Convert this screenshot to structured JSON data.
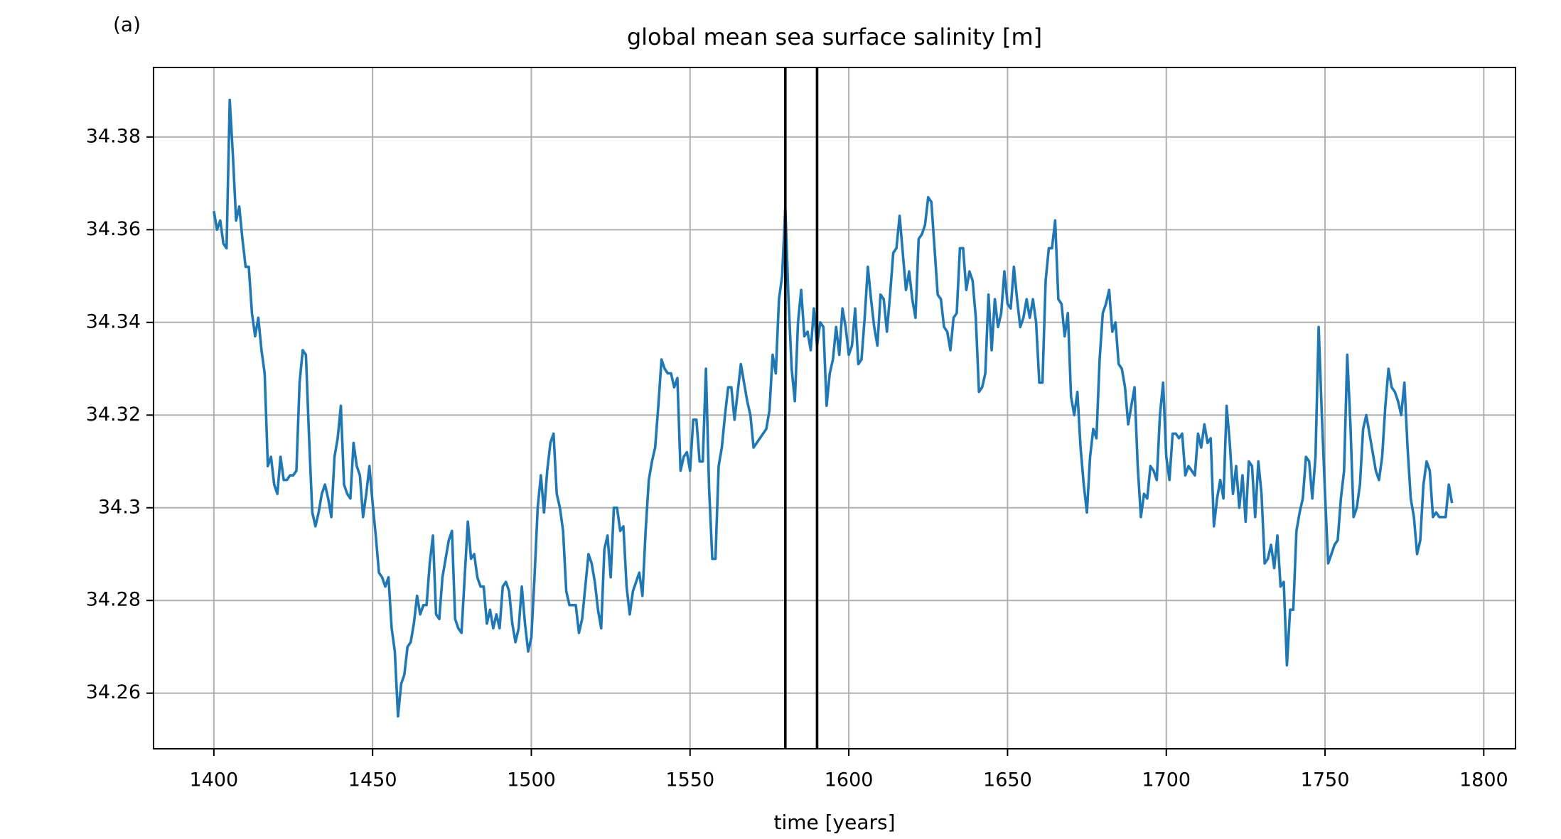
{
  "chart_data": {
    "type": "line",
    "title": "global mean sea surface salinity [m]",
    "panel_label": "(a)",
    "xlabel": "time [years]",
    "xlim": [
      1381,
      1810
    ],
    "ylim": [
      34.248,
      34.395
    ],
    "xticks": [
      1400,
      1450,
      1500,
      1550,
      1600,
      1650,
      1700,
      1750,
      1800
    ],
    "yticks": [
      34.26,
      34.28,
      34.3,
      34.32,
      34.34,
      34.36,
      34.38
    ],
    "grid": true,
    "vlines": [
      1580,
      1590
    ],
    "vline_color": "#000000",
    "x": [
      1400,
      1401,
      1402,
      1403,
      1404,
      1405,
      1406,
      1407,
      1408,
      1409,
      1410,
      1411,
      1412,
      1413,
      1414,
      1415,
      1416,
      1417,
      1418,
      1419,
      1420,
      1421,
      1422,
      1423,
      1424,
      1425,
      1426,
      1427,
      1428,
      1429,
      1430,
      1431,
      1432,
      1433,
      1434,
      1435,
      1436,
      1437,
      1438,
      1439,
      1440,
      1441,
      1442,
      1443,
      1444,
      1445,
      1446,
      1447,
      1448,
      1449,
      1450,
      1451,
      1452,
      1453,
      1454,
      1455,
      1456,
      1457,
      1458,
      1459,
      1460,
      1461,
      1462,
      1463,
      1464,
      1465,
      1466,
      1467,
      1468,
      1469,
      1470,
      1471,
      1472,
      1473,
      1474,
      1475,
      1476,
      1477,
      1478,
      1479,
      1480,
      1481,
      1482,
      1483,
      1484,
      1485,
      1486,
      1487,
      1488,
      1489,
      1490,
      1491,
      1492,
      1493,
      1494,
      1495,
      1496,
      1497,
      1498,
      1499,
      1500,
      1501,
      1502,
      1503,
      1504,
      1505,
      1506,
      1507,
      1508,
      1509,
      1510,
      1511,
      1512,
      1513,
      1514,
      1515,
      1516,
      1517,
      1518,
      1519,
      1520,
      1521,
      1522,
      1523,
      1524,
      1525,
      1526,
      1527,
      1528,
      1529,
      1530,
      1531,
      1532,
      1533,
      1534,
      1535,
      1536,
      1537,
      1538,
      1539,
      1540,
      1541,
      1542,
      1543,
      1544,
      1545,
      1546,
      1547,
      1548,
      1549,
      1550,
      1551,
      1552,
      1553,
      1554,
      1555,
      1556,
      1557,
      1558,
      1559,
      1560,
      1561,
      1562,
      1563,
      1564,
      1565,
      1566,
      1567,
      1568,
      1569,
      1570,
      1571,
      1572,
      1573,
      1574,
      1575,
      1576,
      1577,
      1578,
      1579,
      1580,
      1581,
      1582,
      1583,
      1584,
      1585,
      1586,
      1587,
      1588,
      1589,
      1590,
      1591,
      1592,
      1593,
      1594,
      1595,
      1596,
      1597,
      1598,
      1599,
      1600,
      1601,
      1602,
      1603,
      1604,
      1605,
      1606,
      1607,
      1608,
      1609,
      1610,
      1611,
      1612,
      1613,
      1614,
      1615,
      1616,
      1617,
      1618,
      1619,
      1620,
      1621,
      1622,
      1623,
      1624,
      1625,
      1626,
      1627,
      1628,
      1629,
      1630,
      1631,
      1632,
      1633,
      1634,
      1635,
      1636,
      1637,
      1638,
      1639,
      1640,
      1641,
      1642,
      1643,
      1644,
      1645,
      1646,
      1647,
      1648,
      1649,
      1650,
      1651,
      1652,
      1653,
      1654,
      1655,
      1656,
      1657,
      1658,
      1659,
      1660,
      1661,
      1662,
      1663,
      1664,
      1665,
      1666,
      1667,
      1668,
      1669,
      1670,
      1671,
      1672,
      1673,
      1674,
      1675,
      1676,
      1677,
      1678,
      1679,
      1680,
      1681,
      1682,
      1683,
      1684,
      1685,
      1686,
      1687,
      1688,
      1689,
      1690,
      1691,
      1692,
      1693,
      1694,
      1695,
      1696,
      1697,
      1698,
      1699,
      1700,
      1701,
      1702,
      1703,
      1704,
      1705,
      1706,
      1707,
      1708,
      1709,
      1710,
      1711,
      1712,
      1713,
      1714,
      1715,
      1716,
      1717,
      1718,
      1719,
      1720,
      1721,
      1722,
      1723,
      1724,
      1725,
      1726,
      1727,
      1728,
      1729,
      1730,
      1731,
      1732,
      1733,
      1734,
      1735,
      1736,
      1737,
      1738,
      1739,
      1740,
      1741,
      1742,
      1743,
      1744,
      1745,
      1746,
      1747,
      1748,
      1749,
      1750,
      1751,
      1752,
      1753,
      1754,
      1755,
      1756,
      1757,
      1758,
      1759,
      1760,
      1761,
      1762,
      1763,
      1764,
      1765,
      1766,
      1767,
      1768,
      1769,
      1770,
      1771,
      1772,
      1773,
      1774,
      1775,
      1776,
      1777,
      1778,
      1779,
      1780,
      1781,
      1782,
      1783,
      1784,
      1785,
      1786,
      1787,
      1788,
      1789,
      1790
    ],
    "series": [
      {
        "color": "#1f77b4",
        "values": [
          34.364,
          34.36,
          34.362,
          34.357,
          34.356,
          34.388,
          34.376,
          34.362,
          34.365,
          34.358,
          34.352,
          34.352,
          34.342,
          34.337,
          34.341,
          34.334,
          34.329,
          34.309,
          34.311,
          34.305,
          34.303,
          34.311,
          34.306,
          34.306,
          34.307,
          34.307,
          34.308,
          34.327,
          34.334,
          34.333,
          34.315,
          34.299,
          34.296,
          34.299,
          34.303,
          34.305,
          34.302,
          34.298,
          34.311,
          34.315,
          34.322,
          34.305,
          34.303,
          34.302,
          34.314,
          34.309,
          34.307,
          34.298,
          34.303,
          34.309,
          34.301,
          34.294,
          34.286,
          34.285,
          34.283,
          34.285,
          34.274,
          34.269,
          34.255,
          34.262,
          34.264,
          34.27,
          34.271,
          34.275,
          34.281,
          34.277,
          34.279,
          34.279,
          34.288,
          34.294,
          34.277,
          34.276,
          34.285,
          34.289,
          34.293,
          34.295,
          34.276,
          34.274,
          34.273,
          34.285,
          34.297,
          34.289,
          34.29,
          34.285,
          34.283,
          34.283,
          34.275,
          34.278,
          34.274,
          34.277,
          34.274,
          34.283,
          34.284,
          34.282,
          34.275,
          34.271,
          34.274,
          34.283,
          34.275,
          34.269,
          34.272,
          34.285,
          34.3,
          34.307,
          34.299,
          34.308,
          34.314,
          34.316,
          34.303,
          34.3,
          34.295,
          34.282,
          34.279,
          34.279,
          34.279,
          34.273,
          34.276,
          34.283,
          34.29,
          34.288,
          34.284,
          34.278,
          34.274,
          34.291,
          34.294,
          34.285,
          34.3,
          34.3,
          34.295,
          34.296,
          34.283,
          34.277,
          34.282,
          34.284,
          34.286,
          34.281,
          34.295,
          34.306,
          34.31,
          34.313,
          34.322,
          34.332,
          34.33,
          34.329,
          34.329,
          34.326,
          34.328,
          34.308,
          34.311,
          34.312,
          34.308,
          34.319,
          34.319,
          34.31,
          34.31,
          34.33,
          34.304,
          34.289,
          34.289,
          34.309,
          34.313,
          34.32,
          34.326,
          34.326,
          34.319,
          34.325,
          34.331,
          34.327,
          34.323,
          34.32,
          34.313,
          34.314,
          34.315,
          34.316,
          34.317,
          34.321,
          34.333,
          34.329,
          34.345,
          34.35,
          34.365,
          34.345,
          34.33,
          34.323,
          34.34,
          34.347,
          34.337,
          34.338,
          34.334,
          34.343,
          34.335,
          34.34,
          34.339,
          34.322,
          34.329,
          34.332,
          34.339,
          34.333,
          34.343,
          34.339,
          34.333,
          34.335,
          34.343,
          34.331,
          34.332,
          34.341,
          34.352,
          34.345,
          34.339,
          34.335,
          34.346,
          34.345,
          34.338,
          34.346,
          34.355,
          34.356,
          34.363,
          34.355,
          34.347,
          34.351,
          34.345,
          34.341,
          34.358,
          34.359,
          34.361,
          34.367,
          34.366,
          34.356,
          34.346,
          34.345,
          34.339,
          34.338,
          34.334,
          34.341,
          34.342,
          34.356,
          34.356,
          34.347,
          34.351,
          34.349,
          34.341,
          34.325,
          34.326,
          34.329,
          34.346,
          34.334,
          34.345,
          34.339,
          34.342,
          34.351,
          34.344,
          34.343,
          34.352,
          34.345,
          34.339,
          34.341,
          34.345,
          34.341,
          34.345,
          34.34,
          34.327,
          34.327,
          34.349,
          34.356,
          34.356,
          34.362,
          34.345,
          34.344,
          34.337,
          34.342,
          34.324,
          34.32,
          34.325,
          34.313,
          34.305,
          34.299,
          34.311,
          34.317,
          34.315,
          34.332,
          34.342,
          34.344,
          34.347,
          34.338,
          34.34,
          34.331,
          34.33,
          34.326,
          34.318,
          34.322,
          34.326,
          34.309,
          34.298,
          34.303,
          34.302,
          34.309,
          34.308,
          34.306,
          34.32,
          34.327,
          34.311,
          34.306,
          34.316,
          34.316,
          34.315,
          34.316,
          34.307,
          34.309,
          34.308,
          34.307,
          34.316,
          34.313,
          34.318,
          34.314,
          34.315,
          34.296,
          34.302,
          34.306,
          34.302,
          34.322,
          34.314,
          34.303,
          34.309,
          34.3,
          34.307,
          34.297,
          34.31,
          34.309,
          34.298,
          34.31,
          34.303,
          34.288,
          34.289,
          34.292,
          34.287,
          34.294,
          34.283,
          34.284,
          34.266,
          34.278,
          34.278,
          34.295,
          34.299,
          34.302,
          34.311,
          34.31,
          34.302,
          34.311,
          34.339,
          34.32,
          34.303,
          34.288,
          34.29,
          34.292,
          34.293,
          34.302,
          34.308,
          34.333,
          34.318,
          34.298,
          34.3,
          34.305,
          34.317,
          34.32,
          34.316,
          34.312,
          34.308,
          34.306,
          34.311,
          34.322,
          34.33,
          34.326,
          34.325,
          34.323,
          34.32,
          34.327,
          34.313,
          34.302,
          34.298,
          34.29,
          34.293,
          34.305,
          34.31,
          34.308,
          34.298,
          34.299,
          34.298,
          34.298,
          34.298,
          34.305,
          34.301
        ]
      }
    ]
  }
}
